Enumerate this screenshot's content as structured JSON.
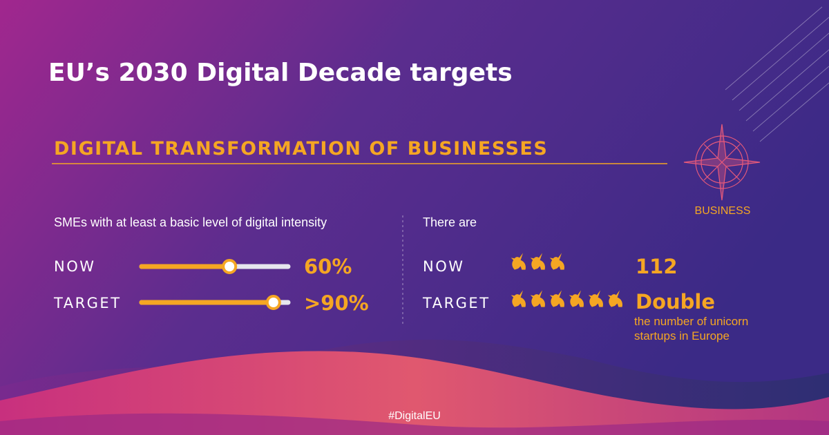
{
  "header": {
    "title": "EU’s 2030 Digital Decade targets"
  },
  "section": {
    "title": "DIGITAL TRANSFORMATION OF BUSINESSES",
    "badge": "BUSINESS"
  },
  "smes": {
    "label": "SMEs with at least a basic level of digital intensity",
    "xlim": [
      0,
      100
    ],
    "rows": [
      {
        "label": "NOW",
        "value": 60,
        "value_label": "60%"
      },
      {
        "label": "TARGET",
        "value": 90,
        "value_label": ">90%"
      }
    ]
  },
  "unicorns": {
    "label": "There are",
    "rows": [
      {
        "label": "NOW",
        "text": 112
      },
      {
        "label": "TARGET",
        "text": "Double",
        "note": "the number of unicorn startups in Europe"
      }
    ]
  },
  "footer": {
    "hashtag": "#DigitalEU"
  }
}
